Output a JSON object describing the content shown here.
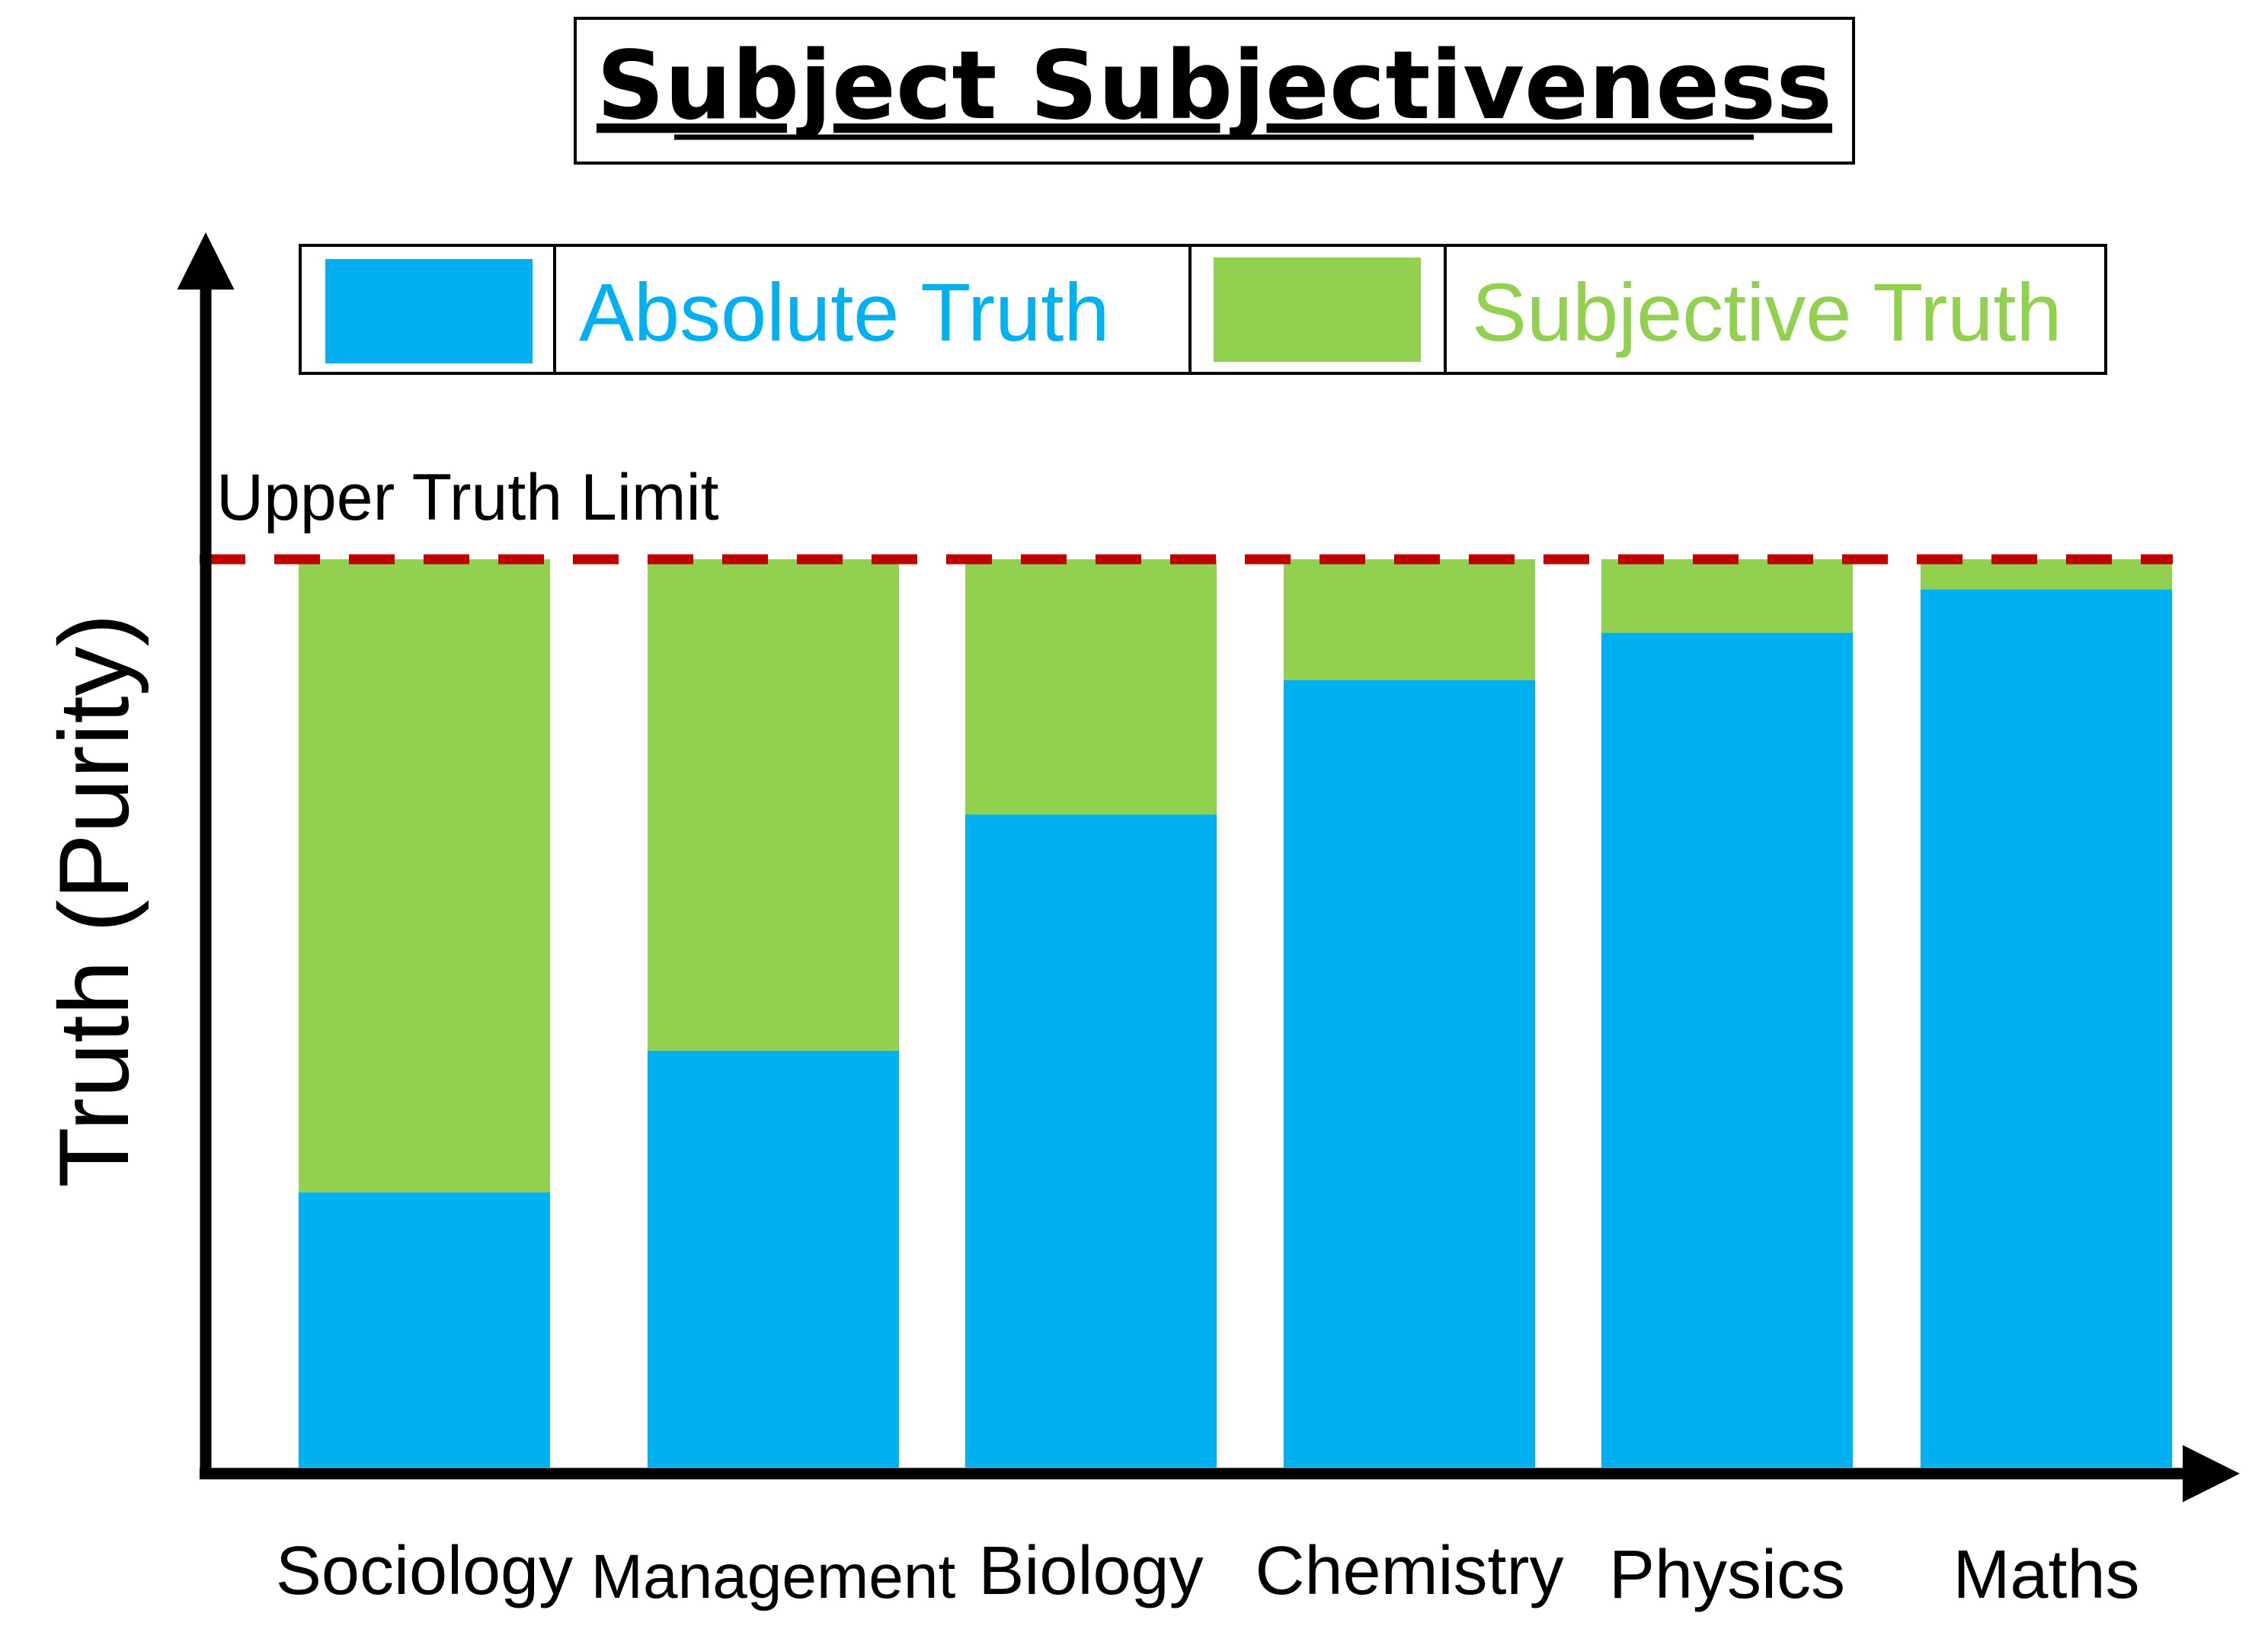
{
  "chart_data": {
    "type": "bar",
    "stacked": true,
    "title": "Subject Subjectiveness",
    "ylabel": "Truth (Purity)",
    "xlabel": "",
    "categories": [
      "Sociology",
      "Management",
      "Biology",
      "Chemistry",
      "Physics",
      "Maths"
    ],
    "series": [
      {
        "name": "Absolute Truth",
        "color": "#00b0f0",
        "values": [
          30.3,
          45.9,
          71.9,
          86.7,
          91.9,
          96.7
        ]
      },
      {
        "name": "Subjective Truth",
        "color": "#92d050",
        "values": [
          69.7,
          54.1,
          28.1,
          13.3,
          8.1,
          3.3
        ]
      }
    ],
    "reference_line": {
      "label": "Upper Truth Limit",
      "value": 100,
      "color": "#c00000",
      "style": "dashed"
    },
    "ylim": [
      0,
      100
    ],
    "y_ticks": "none",
    "grid": false,
    "legend_position": "top"
  }
}
